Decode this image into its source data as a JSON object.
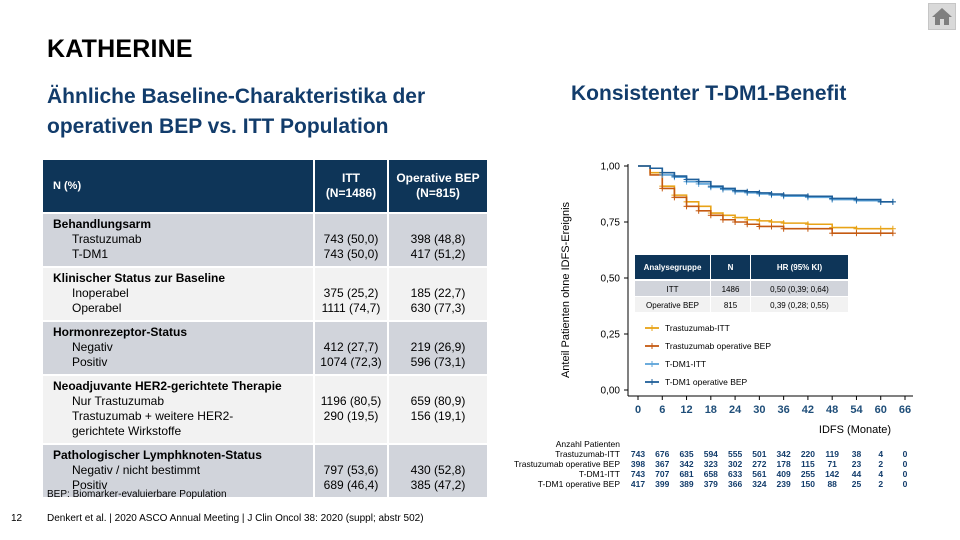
{
  "header": {
    "title": "KATHERINE",
    "subtitle_left": "Ähnliche Baseline-Charakteristika der operativen BEP vs. ITT Population",
    "subtitle_right": "Konsistenter T-DM1-Benefit"
  },
  "home_icon": "home-icon",
  "table": {
    "headers": {
      "col0": "N (%)",
      "col1_line1": "ITT",
      "col1_line2": "(N=1486)",
      "col2_line1": "Operative BEP",
      "col2_line2": "(N=815)"
    },
    "groups": [
      {
        "title": "Behandlungsarm",
        "rows": [
          {
            "label": "Trastuzumab",
            "itt": "743 (50,0)",
            "bep": "398 (48,8)"
          },
          {
            "label": "T-DM1",
            "itt": "743 (50,0)",
            "bep": "417 (51,2)"
          }
        ]
      },
      {
        "title": "Klinischer Status zur Baseline",
        "rows": [
          {
            "label": "Inoperabel",
            "itt": "375 (25,2)",
            "bep": "185 (22,7)"
          },
          {
            "label": "Operabel",
            "itt": "1111 (74,7)",
            "bep": "630 (77,3)"
          }
        ]
      },
      {
        "title": "Hormonrezeptor-Status",
        "rows": [
          {
            "label": "Negativ",
            "itt": "412 (27,7)",
            "bep": "219 (26,9)"
          },
          {
            "label": "Positiv",
            "itt": "1074 (72,3)",
            "bep": "596 (73,1)"
          }
        ]
      },
      {
        "title": "Neoadjuvante HER2-gerichtete Therapie",
        "rows": [
          {
            "label": "Nur Trastuzumab",
            "itt": "1196 (80,5)",
            "bep": "659 (80,9)"
          },
          {
            "label": "Trastuzumab + weitere HER2-",
            "label_cont": "gerichtete Wirkstoffe",
            "itt": "290 (19,5)",
            "bep": "156 (19,1)"
          }
        ]
      },
      {
        "title": "Pathologischer Lymphknoten-Status",
        "rows": [
          {
            "label": "Negativ / nicht bestimmt",
            "itt": "797 (53,6)",
            "bep": "430 (52,8)"
          },
          {
            "label": "Positiv",
            "itt": "689 (46,4)",
            "bep": "385 (47,2)"
          }
        ]
      }
    ],
    "footnote": "BEP: Biomarker-evaluierbare Population"
  },
  "footer": {
    "page_number": "12",
    "citation": "Denkert et al. | 2020 ASCO Annual Meeting | J Clin Oncol 38: 2020 (suppl; abstr 502)"
  },
  "chart_data": {
    "type": "line",
    "xlabel": "IDFS (Monate)",
    "ylabel": "Anteil Patienten ohne IDFS-Ereignis",
    "x_ticks": [
      "0",
      "6",
      "12",
      "18",
      "24",
      "30",
      "36",
      "42",
      "48",
      "54",
      "60",
      "66"
    ],
    "y_ticks": [
      "0,00",
      "0,25",
      "0,50",
      "0,75",
      "1,00"
    ],
    "xlim": [
      0,
      66
    ],
    "ylim": [
      0,
      1
    ],
    "series": [
      {
        "name": "Trastuzumab-ITT",
        "color": "#e8a317",
        "x": [
          0,
          3,
          6,
          9,
          12,
          15,
          18,
          21,
          24,
          27,
          30,
          33,
          36,
          42,
          48,
          54,
          60,
          63
        ],
        "y": [
          1.0,
          0.97,
          0.91,
          0.87,
          0.84,
          0.82,
          0.79,
          0.78,
          0.77,
          0.76,
          0.755,
          0.75,
          0.745,
          0.74,
          0.725,
          0.72,
          0.72,
          0.72
        ]
      },
      {
        "name": "Trastuzumab operative BEP",
        "color": "#c55a11",
        "x": [
          0,
          3,
          6,
          9,
          12,
          15,
          18,
          21,
          24,
          27,
          30,
          33,
          36,
          42,
          48,
          54,
          60,
          63
        ],
        "y": [
          1.0,
          0.96,
          0.9,
          0.86,
          0.82,
          0.8,
          0.78,
          0.76,
          0.75,
          0.74,
          0.73,
          0.73,
          0.72,
          0.72,
          0.7,
          0.7,
          0.7,
          0.7
        ]
      },
      {
        "name": "T-DM1-ITT",
        "color": "#5ba3d9",
        "x": [
          0,
          3,
          6,
          9,
          12,
          15,
          18,
          21,
          24,
          27,
          30,
          33,
          36,
          42,
          48,
          54,
          60,
          63
        ],
        "y": [
          1.0,
          0.99,
          0.96,
          0.95,
          0.93,
          0.92,
          0.905,
          0.895,
          0.885,
          0.88,
          0.875,
          0.87,
          0.865,
          0.86,
          0.85,
          0.845,
          0.84,
          0.84
        ]
      },
      {
        "name": "T-DM1 operative BEP",
        "color": "#1f5f99",
        "x": [
          0,
          3,
          6,
          9,
          12,
          15,
          18,
          21,
          24,
          27,
          30,
          33,
          36,
          42,
          48,
          54,
          60,
          63
        ],
        "y": [
          1.0,
          0.99,
          0.97,
          0.955,
          0.94,
          0.93,
          0.91,
          0.9,
          0.89,
          0.885,
          0.88,
          0.875,
          0.87,
          0.865,
          0.855,
          0.85,
          0.84,
          0.84
        ]
      }
    ],
    "legend_placement": "bottom-left",
    "hr_table": {
      "headers": [
        "Analysegruppe",
        "N",
        "HR (95% KI)"
      ],
      "rows": [
        [
          "ITT",
          "1486",
          "0,50 (0,39; 0,64)"
        ],
        [
          "Operative BEP",
          "815",
          "0,39 (0,28; 0,55)"
        ]
      ]
    },
    "risk_table": {
      "title": "Anzahl Patienten",
      "rows": [
        {
          "label": "Trastuzumab-ITT",
          "values": [
            "743",
            "676",
            "635",
            "594",
            "555",
            "501",
            "342",
            "220",
            "119",
            "38",
            "4",
            "0"
          ]
        },
        {
          "label": "Trastuzumab operative BEP",
          "values": [
            "398",
            "367",
            "342",
            "323",
            "302",
            "272",
            "178",
            "115",
            "71",
            "23",
            "2",
            "0"
          ]
        },
        {
          "label": "T-DM1-ITT",
          "values": [
            "743",
            "707",
            "681",
            "658",
            "633",
            "561",
            "409",
            "255",
            "142",
            "44",
            "4",
            "0"
          ]
        },
        {
          "label": "T-DM1 operative BEP",
          "values": [
            "417",
            "399",
            "389",
            "379",
            "366",
            "324",
            "239",
            "150",
            "88",
            "25",
            "2",
            "0"
          ]
        }
      ]
    }
  }
}
